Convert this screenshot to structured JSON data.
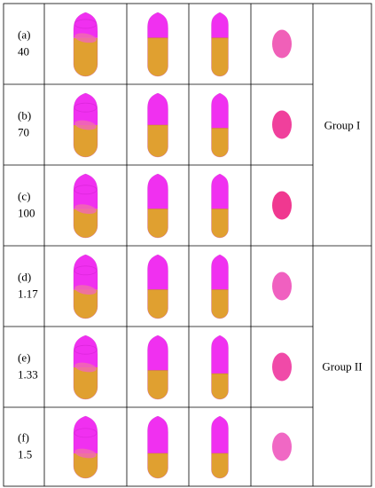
{
  "rows": [
    {
      "letter": "(a)",
      "value": "40",
      "body_color": "#f030f0",
      "cap_color": "#e0a030",
      "dot_color": "#f060b8",
      "shapes": [
        {
          "top": 0.4,
          "tilt": true,
          "wide": true
        },
        {
          "top": 0.4,
          "tilt": false,
          "wide": false
        },
        {
          "top": 0.4,
          "tilt": false,
          "wide": false
        }
      ]
    },
    {
      "letter": "(b)",
      "value": "70",
      "body_color": "#f030f0",
      "cap_color": "#e0a030",
      "dot_color": "#f0409c",
      "shapes": [
        {
          "top": 0.5,
          "tilt": true,
          "wide": true
        },
        {
          "top": 0.5,
          "tilt": false,
          "wide": false
        },
        {
          "top": 0.55,
          "tilt": false,
          "wide": false
        }
      ]
    },
    {
      "letter": "(c)",
      "value": "100",
      "body_color": "#f030f0",
      "cap_color": "#e0a030",
      "dot_color": "#f03890",
      "shapes": [
        {
          "top": 0.55,
          "tilt": true,
          "wide": true
        },
        {
          "top": 0.55,
          "tilt": false,
          "wide": false
        },
        {
          "top": 0.55,
          "tilt": false,
          "wide": false
        }
      ]
    },
    {
      "letter": "(d)",
      "value": "1.17",
      "body_color": "#f030f0",
      "cap_color": "#e0a030",
      "dot_color": "#f060c0",
      "shapes": [
        {
          "top": 0.55,
          "tilt": true,
          "wide": true
        },
        {
          "top": 0.55,
          "tilt": false,
          "wide": false
        },
        {
          "top": 0.55,
          "tilt": false,
          "wide": false
        }
      ]
    },
    {
      "letter": "(e)",
      "value": "1.33",
      "body_color": "#f030f0",
      "cap_color": "#e0a030",
      "dot_color": "#f04aa8",
      "shapes": [
        {
          "top": 0.5,
          "tilt": true,
          "wide": true
        },
        {
          "top": 0.55,
          "tilt": false,
          "wide": false
        },
        {
          "top": 0.6,
          "tilt": false,
          "wide": false
        }
      ]
    },
    {
      "letter": "(f)",
      "value": "1.5",
      "body_color": "#f030f0",
      "cap_color": "#e0a030",
      "dot_color": "#f068c4",
      "shapes": [
        {
          "top": 0.6,
          "tilt": true,
          "wide": true
        },
        {
          "top": 0.6,
          "tilt": false,
          "wide": false
        },
        {
          "top": 0.6,
          "tilt": false,
          "wide": false
        }
      ]
    }
  ],
  "groups": [
    {
      "label": "Group I",
      "rows": [
        0,
        1,
        2
      ]
    },
    {
      "label": "Group II",
      "rows": [
        3,
        4,
        5
      ]
    }
  ]
}
